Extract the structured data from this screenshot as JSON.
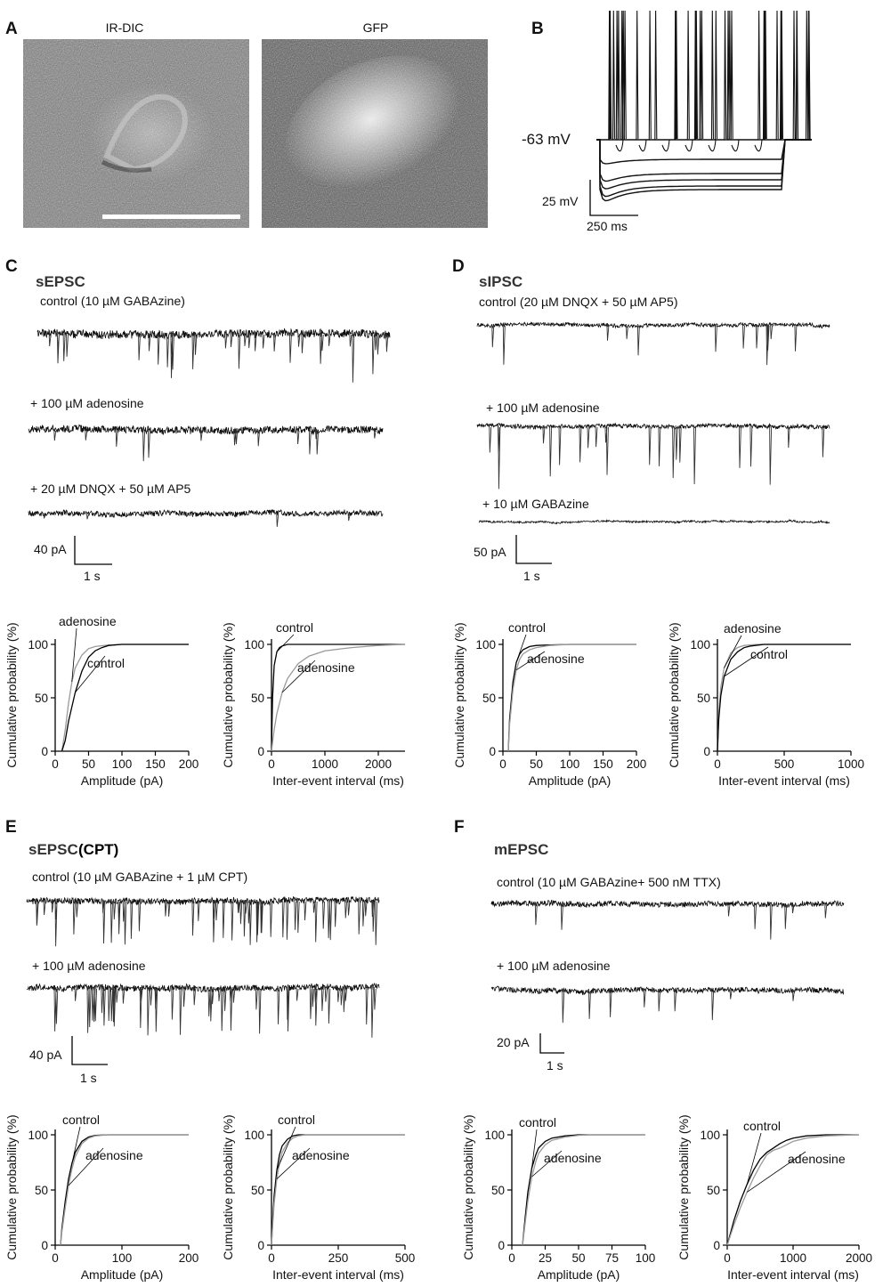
{
  "panels": {
    "A": {
      "letter": "A",
      "image_left_label": "IR-DIC",
      "image_right_label": "GFP"
    },
    "B": {
      "letter": "B",
      "resting_label": "-63 mV",
      "scale_v": "25 mV",
      "scale_t": "250 ms"
    },
    "C": {
      "letter": "C",
      "title": "sEPSC",
      "traces": [
        "control (10 µM GABAzine)",
        "+ 100 µM adenosine",
        "+ 20 µM DNQX + 50 µM AP5"
      ],
      "scale_y": "40 pA",
      "scale_x": "1 s"
    },
    "D": {
      "letter": "D",
      "title": "sIPSC",
      "traces": [
        "control (20 µM DNQX + 50 µM AP5)",
        "+ 100 µM adenosine",
        "+ 10 µM GABAzine"
      ],
      "scale_y": "50 pA",
      "scale_x": "1 s"
    },
    "E": {
      "letter": "E",
      "title": "sEPSC",
      "title_suffix": "(CPT)",
      "traces": [
        "control (10 µM GABAzine + 1  µM CPT)",
        "+ 100 µM adenosine"
      ],
      "scale_y": "40 pA",
      "scale_x": "1 s"
    },
    "F": {
      "letter": "F",
      "title": "mEPSC",
      "traces": [
        "control (10 µM GABAzine+ 500 nM TTX)",
        "+ 100 µM adenosine"
      ],
      "scale_y": "20 pA",
      "scale_x": "1 s"
    }
  },
  "chart_data": [
    {
      "id": "C-amp",
      "type": "line",
      "xlabel": "Amplitude (pA)",
      "ylabel": "Cumulative probability (%)",
      "xlim": [
        0,
        200
      ],
      "xticks": [
        0,
        50,
        100,
        150,
        200
      ],
      "ylim": [
        0,
        100
      ],
      "yticks": [
        0,
        50,
        100
      ],
      "series": [
        {
          "name": "adenosine",
          "color": "#9a9a9a",
          "x": [
            10,
            15,
            20,
            25,
            30,
            40,
            50,
            60,
            80,
            100,
            200
          ],
          "y": [
            0,
            20,
            45,
            65,
            78,
            90,
            96,
            98,
            99.5,
            100,
            100
          ]
        },
        {
          "name": "control",
          "color": "#000000",
          "x": [
            10,
            15,
            20,
            30,
            40,
            50,
            60,
            70,
            80,
            100,
            200
          ],
          "y": [
            0,
            10,
            28,
            55,
            75,
            88,
            94,
            97,
            99,
            100,
            100
          ]
        }
      ],
      "annotations": [
        "adenosine",
        "control"
      ]
    },
    {
      "id": "C-iei",
      "type": "line",
      "xlabel": "Inter-event interval (ms)",
      "ylabel": "Cumulative probability (%)",
      "xlim": [
        0,
        2500
      ],
      "xticks": [
        0,
        1000,
        2000
      ],
      "ylim": [
        0,
        100
      ],
      "yticks": [
        0,
        50,
        100
      ],
      "series": [
        {
          "name": "control",
          "color": "#000000",
          "x": [
            0,
            20,
            50,
            100,
            150,
            200,
            300,
            2500
          ],
          "y": [
            0,
            50,
            80,
            93,
            97,
            98.5,
            100,
            100
          ]
        },
        {
          "name": "adenosine",
          "color": "#9a9a9a",
          "x": [
            0,
            50,
            100,
            200,
            300,
            500,
            700,
            1000,
            1500,
            2000,
            2500
          ],
          "y": [
            0,
            20,
            35,
            55,
            68,
            82,
            89,
            94,
            97,
            99,
            100
          ]
        }
      ],
      "annotations": [
        "control",
        "adenosine"
      ]
    },
    {
      "id": "D-amp",
      "type": "line",
      "xlabel": "Amplitude (pA)",
      "ylabel": "Cumulative probability (%)",
      "xlim": [
        0,
        200
      ],
      "xticks": [
        0,
        50,
        100,
        150,
        200
      ],
      "ylim": [
        0,
        100
      ],
      "yticks": [
        0,
        50,
        100
      ],
      "series": [
        {
          "name": "control",
          "color": "#000000",
          "x": [
            8,
            10,
            15,
            20,
            25,
            30,
            40,
            50,
            70,
            100,
            200
          ],
          "y": [
            0,
            30,
            65,
            83,
            91,
            95,
            98,
            99,
            99.5,
            100,
            100
          ]
        },
        {
          "name": "adenosine",
          "color": "#9a9a9a",
          "x": [
            8,
            10,
            15,
            20,
            25,
            30,
            40,
            50,
            70,
            100,
            200
          ],
          "y": [
            0,
            25,
            58,
            76,
            86,
            91,
            95,
            97,
            99,
            100,
            100
          ]
        }
      ],
      "annotations": [
        "control",
        "adenosine"
      ]
    },
    {
      "id": "D-iei",
      "type": "line",
      "xlabel": "Inter-event interval (ms)",
      "ylabel": "Cumulative probability (%)",
      "xlim": [
        0,
        1000
      ],
      "xticks": [
        0,
        500,
        1000
      ],
      "ylim": [
        0,
        100
      ],
      "yticks": [
        0,
        50,
        100
      ],
      "series": [
        {
          "name": "adenosine",
          "color": "#9a9a9a",
          "x": [
            0,
            10,
            25,
            50,
            100,
            150,
            200,
            300,
            1000
          ],
          "y": [
            0,
            35,
            60,
            78,
            92,
            97,
            99,
            100,
            100
          ]
        },
        {
          "name": "control",
          "color": "#000000",
          "x": [
            0,
            10,
            25,
            50,
            100,
            150,
            200,
            250,
            350,
            1000
          ],
          "y": [
            0,
            30,
            52,
            70,
            86,
            93,
            97,
            98.5,
            100,
            100
          ]
        }
      ],
      "annotations": [
        "adenosine",
        "control"
      ]
    },
    {
      "id": "E-amp",
      "type": "line",
      "xlabel": "Amplitude (pA)",
      "ylabel": "Cumulative probability (%)",
      "xlim": [
        0,
        200
      ],
      "xticks": [
        0,
        100,
        200
      ],
      "ylim": [
        0,
        100
      ],
      "yticks": [
        0,
        50,
        100
      ],
      "series": [
        {
          "name": "control",
          "color": "#000000",
          "x": [
            8,
            10,
            15,
            20,
            25,
            30,
            40,
            50,
            60,
            80,
            200
          ],
          "y": [
            0,
            15,
            40,
            60,
            74,
            84,
            94,
            98,
            99.5,
            100,
            100
          ]
        },
        {
          "name": "adenosine",
          "color": "#9a9a9a",
          "x": [
            8,
            10,
            15,
            20,
            25,
            30,
            40,
            50,
            60,
            80,
            200
          ],
          "y": [
            0,
            12,
            34,
            54,
            69,
            80,
            92,
            97,
            99,
            100,
            100
          ]
        }
      ],
      "annotations": [
        "control",
        "adenosine"
      ]
    },
    {
      "id": "E-iei",
      "type": "line",
      "xlabel": "Inter-event interval (ms)",
      "ylabel": "Cumulative probability (%)",
      "xlim": [
        0,
        500
      ],
      "xticks": [
        0,
        250,
        500
      ],
      "ylim": [
        0,
        100
      ],
      "yticks": [
        0,
        50,
        100
      ],
      "series": [
        {
          "name": "control",
          "color": "#000000",
          "x": [
            0,
            5,
            10,
            20,
            30,
            40,
            60,
            80,
            100,
            500
          ],
          "y": [
            0,
            25,
            45,
            68,
            82,
            90,
            96,
            99,
            100,
            100
          ]
        },
        {
          "name": "adenosine",
          "color": "#9a9a9a",
          "x": [
            0,
            5,
            10,
            20,
            30,
            40,
            60,
            80,
            100,
            130,
            500
          ],
          "y": [
            0,
            20,
            38,
            60,
            75,
            84,
            93,
            97,
            99,
            100,
            100
          ]
        }
      ],
      "annotations": [
        "control",
        "adenosine"
      ]
    },
    {
      "id": "F-amp",
      "type": "line",
      "xlabel": "Amplitude (pA)",
      "ylabel": "Cumulative probability (%)",
      "xlim": [
        0,
        100
      ],
      "xticks": [
        0,
        25,
        50,
        75,
        100
      ],
      "ylim": [
        0,
        100
      ],
      "yticks": [
        0,
        50,
        100
      ],
      "series": [
        {
          "name": "control",
          "color": "#000000",
          "x": [
            8,
            10,
            12,
            15,
            18,
            20,
            25,
            30,
            40,
            50,
            100
          ],
          "y": [
            0,
            25,
            48,
            70,
            82,
            88,
            94,
            97,
            99,
            100,
            100
          ]
        },
        {
          "name": "adenosine",
          "color": "#9a9a9a",
          "x": [
            8,
            10,
            12,
            15,
            18,
            20,
            25,
            30,
            40,
            50,
            60,
            100
          ],
          "y": [
            0,
            20,
            40,
            62,
            76,
            83,
            91,
            95,
            98,
            99.5,
            100,
            100
          ]
        }
      ],
      "annotations": [
        "control",
        "adenosine"
      ]
    },
    {
      "id": "F-iei",
      "type": "line",
      "xlabel": "Inter-event interval (ms)",
      "ylabel": "Cumulative probability (%)",
      "xlim": [
        0,
        2000
      ],
      "xticks": [
        0,
        1000,
        2000
      ],
      "ylim": [
        0,
        100
      ],
      "yticks": [
        0,
        50,
        100
      ],
      "series": [
        {
          "name": "control",
          "color": "#000000",
          "x": [
            0,
            100,
            200,
            300,
            400,
            500,
            600,
            700,
            800,
            900,
            1000,
            1200,
            1500,
            2000
          ],
          "y": [
            0,
            22,
            40,
            55,
            68,
            78,
            84,
            88,
            92,
            95,
            97,
            99,
            100,
            100
          ]
        },
        {
          "name": "adenosine",
          "color": "#9a9a9a",
          "x": [
            0,
            100,
            200,
            300,
            400,
            500,
            600,
            700,
            800,
            900,
            1000,
            1200,
            1500,
            2000
          ],
          "y": [
            0,
            18,
            34,
            48,
            61,
            72,
            82,
            86,
            88,
            91,
            94,
            97,
            99,
            100
          ]
        }
      ],
      "annotations": [
        "control",
        "adenosine"
      ]
    }
  ]
}
